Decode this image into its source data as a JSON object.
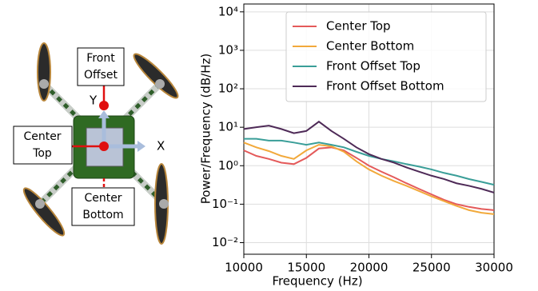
{
  "diagram": {
    "labels": {
      "front_offset": [
        "Front",
        "Offset"
      ],
      "center_top": [
        "Center",
        "Top"
      ],
      "center_bottom": [
        "Center",
        "Bottom"
      ],
      "x_axis": "X",
      "y_axis": "Y"
    }
  },
  "chart_data": {
    "type": "line",
    "xlabel": "Frequency (Hz)",
    "ylabel": "Power/Frequency (dB/Hz)",
    "x": [
      10000,
      11000,
      12000,
      13000,
      14000,
      15000,
      16000,
      17000,
      18000,
      19000,
      20000,
      21000,
      22000,
      23000,
      24000,
      25000,
      26000,
      27000,
      28000,
      29000,
      30000
    ],
    "series": [
      {
        "name": "Center Top",
        "color": "#e45a5a",
        "values": [
          2.5,
          1.8,
          1.5,
          1.2,
          1.1,
          1.6,
          2.8,
          3.0,
          2.5,
          1.6,
          1.0,
          0.7,
          0.5,
          0.35,
          0.25,
          0.18,
          0.13,
          0.1,
          0.085,
          0.075,
          0.07
        ]
      },
      {
        "name": "Center Bottom",
        "color": "#f2a93b",
        "values": [
          4,
          3,
          2.4,
          1.8,
          1.5,
          2.5,
          3.5,
          3.2,
          2.3,
          1.3,
          0.8,
          0.55,
          0.4,
          0.3,
          0.22,
          0.16,
          0.12,
          0.09,
          0.07,
          0.06,
          0.055
        ]
      },
      {
        "name": "Front Offset Top",
        "color": "#3a9e98",
        "values": [
          5,
          5,
          4.5,
          4.5,
          4,
          3.5,
          4,
          3.5,
          3,
          2.3,
          1.8,
          1.5,
          1.3,
          1.1,
          0.95,
          0.8,
          0.65,
          0.55,
          0.45,
          0.38,
          0.32
        ]
      },
      {
        "name": "Front Offset Bottom",
        "color": "#4e2a57",
        "values": [
          9,
          10,
          11,
          9,
          7,
          8,
          14,
          8,
          5,
          3,
          2,
          1.5,
          1.2,
          0.9,
          0.7,
          0.55,
          0.45,
          0.35,
          0.3,
          0.25,
          0.2
        ]
      }
    ],
    "xlim": [
      10000,
      30000
    ],
    "xticks": [
      10000,
      15000,
      20000,
      25000,
      30000
    ],
    "ylim": [
      0.005,
      16000
    ],
    "log_y": true,
    "yticks": [
      {
        "value": 0.01,
        "label": "10⁻²"
      },
      {
        "value": 0.1,
        "label": "10⁻¹"
      },
      {
        "value": 1,
        "label": "10⁰"
      },
      {
        "value": 10,
        "label": "10¹"
      },
      {
        "value": 100,
        "label": "10²"
      },
      {
        "value": 1000,
        "label": "10³"
      },
      {
        "value": 10000,
        "label": "10⁴"
      }
    ],
    "grid": true,
    "legend": "upper right"
  }
}
